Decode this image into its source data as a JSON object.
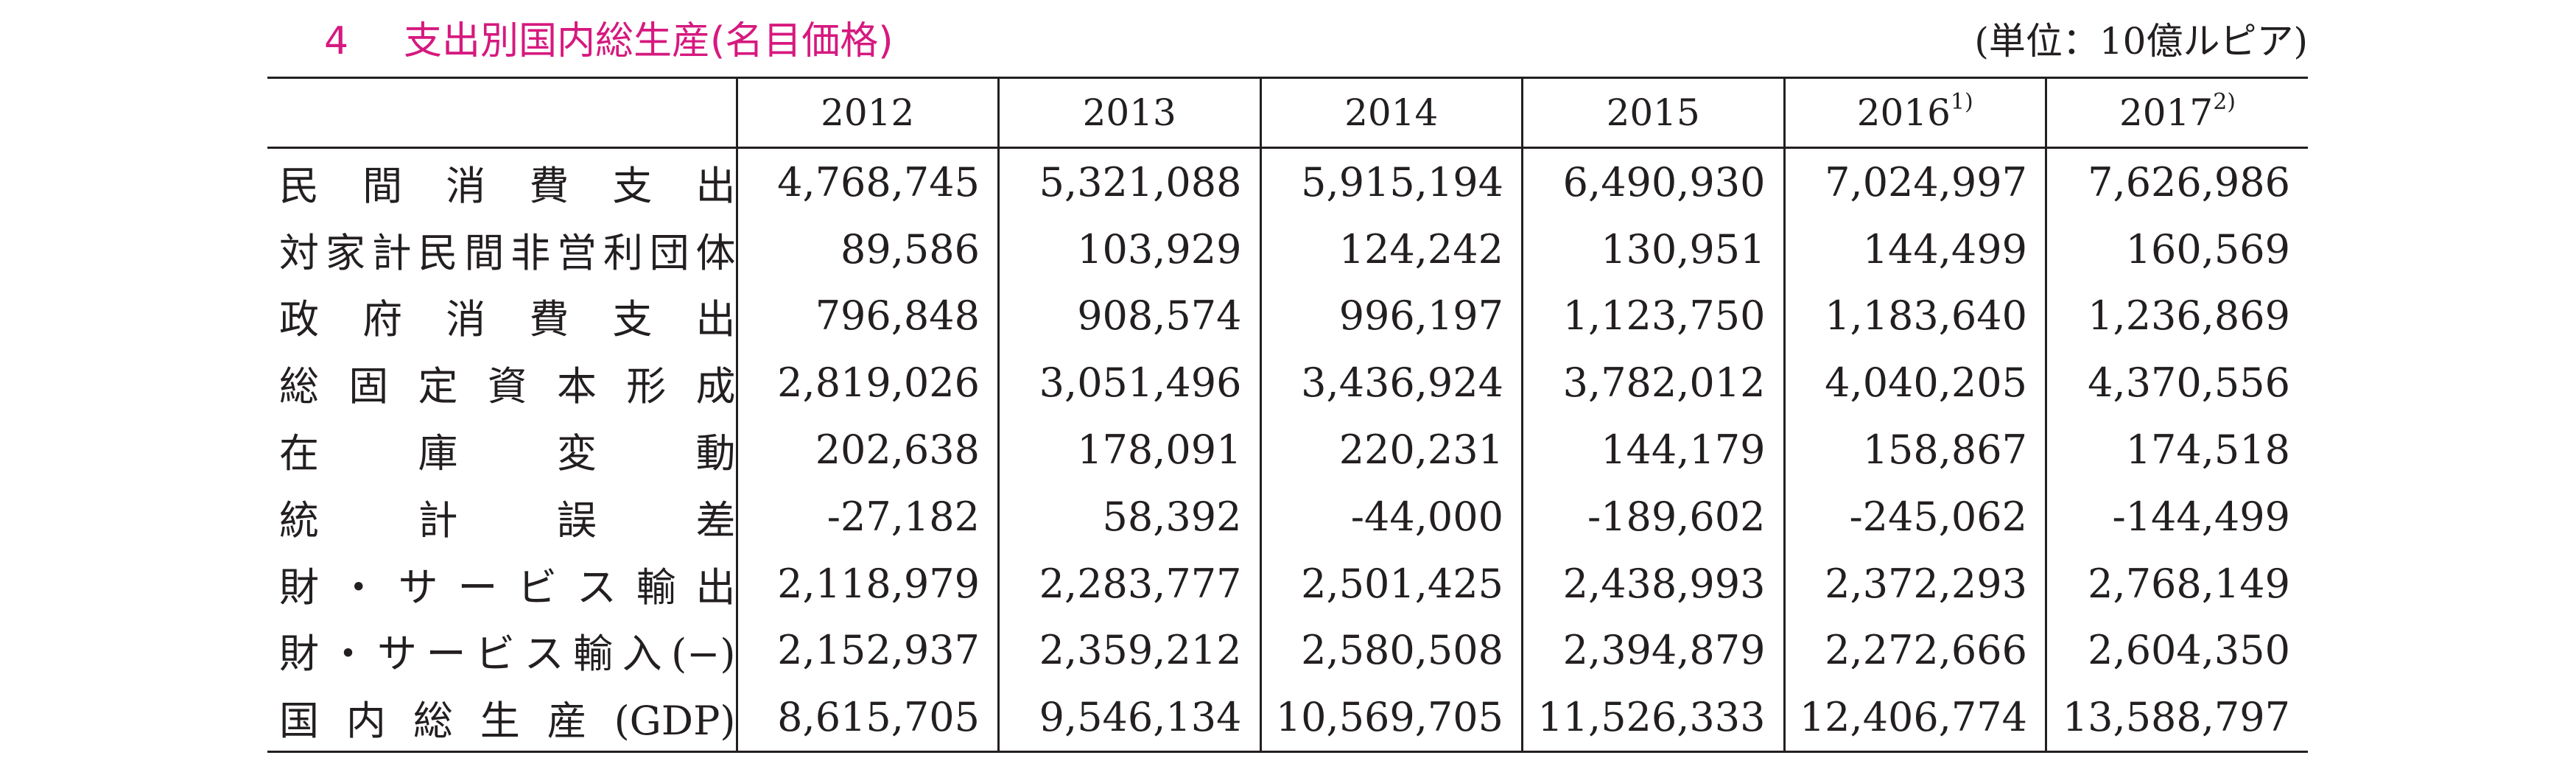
{
  "title": {
    "number": "4",
    "text": "支出別国内総生産(名目価格)",
    "unit": "(単位：10億ルピア)"
  },
  "table": {
    "years": [
      {
        "label": "2012",
        "note": ""
      },
      {
        "label": "2013",
        "note": ""
      },
      {
        "label": "2014",
        "note": ""
      },
      {
        "label": "2015",
        "note": ""
      },
      {
        "label": "2016",
        "note": "1)"
      },
      {
        "label": "2017",
        "note": "2)"
      }
    ],
    "rows": [
      {
        "label": "民間消費支出",
        "values": [
          "4,768,745",
          "5,321,088",
          "5,915,194",
          "6,490,930",
          "7,024,997",
          "7,626,986"
        ]
      },
      {
        "label": "対家計民間非営利団体",
        "values": [
          "89,586",
          "103,929",
          "124,242",
          "130,951",
          "144,499",
          "160,569"
        ]
      },
      {
        "label": "政府消費支出",
        "values": [
          "796,848",
          "908,574",
          "996,197",
          "1,123,750",
          "1,183,640",
          "1,236,869"
        ]
      },
      {
        "label": "総固定資本形成",
        "values": [
          "2,819,026",
          "3,051,496",
          "3,436,924",
          "3,782,012",
          "4,040,205",
          "4,370,556"
        ]
      },
      {
        "label": "在庫変動",
        "values": [
          "202,638",
          "178,091",
          "220,231",
          "144,179",
          "158,867",
          "174,518"
        ]
      },
      {
        "label": "統計誤差",
        "values": [
          "-27,182",
          "58,392",
          "-44,000",
          "-189,602",
          "-245,062",
          "-144,499"
        ]
      },
      {
        "label": "財・サービス輸出",
        "values": [
          "2,118,979",
          "2,283,777",
          "2,501,425",
          "2,438,993",
          "2,372,293",
          "2,768,149"
        ]
      },
      {
        "label": "財・サービス輸入(−)",
        "values": [
          "2,152,937",
          "2,359,212",
          "2,580,508",
          "2,394,879",
          "2,272,666",
          "2,604,350"
        ]
      },
      {
        "label": "国内総生産(GDP)",
        "values": [
          "8,615,705",
          "9,546,134",
          "10,569,705",
          "11,526,333",
          "12,406,774",
          "13,588,797"
        ]
      }
    ]
  }
}
